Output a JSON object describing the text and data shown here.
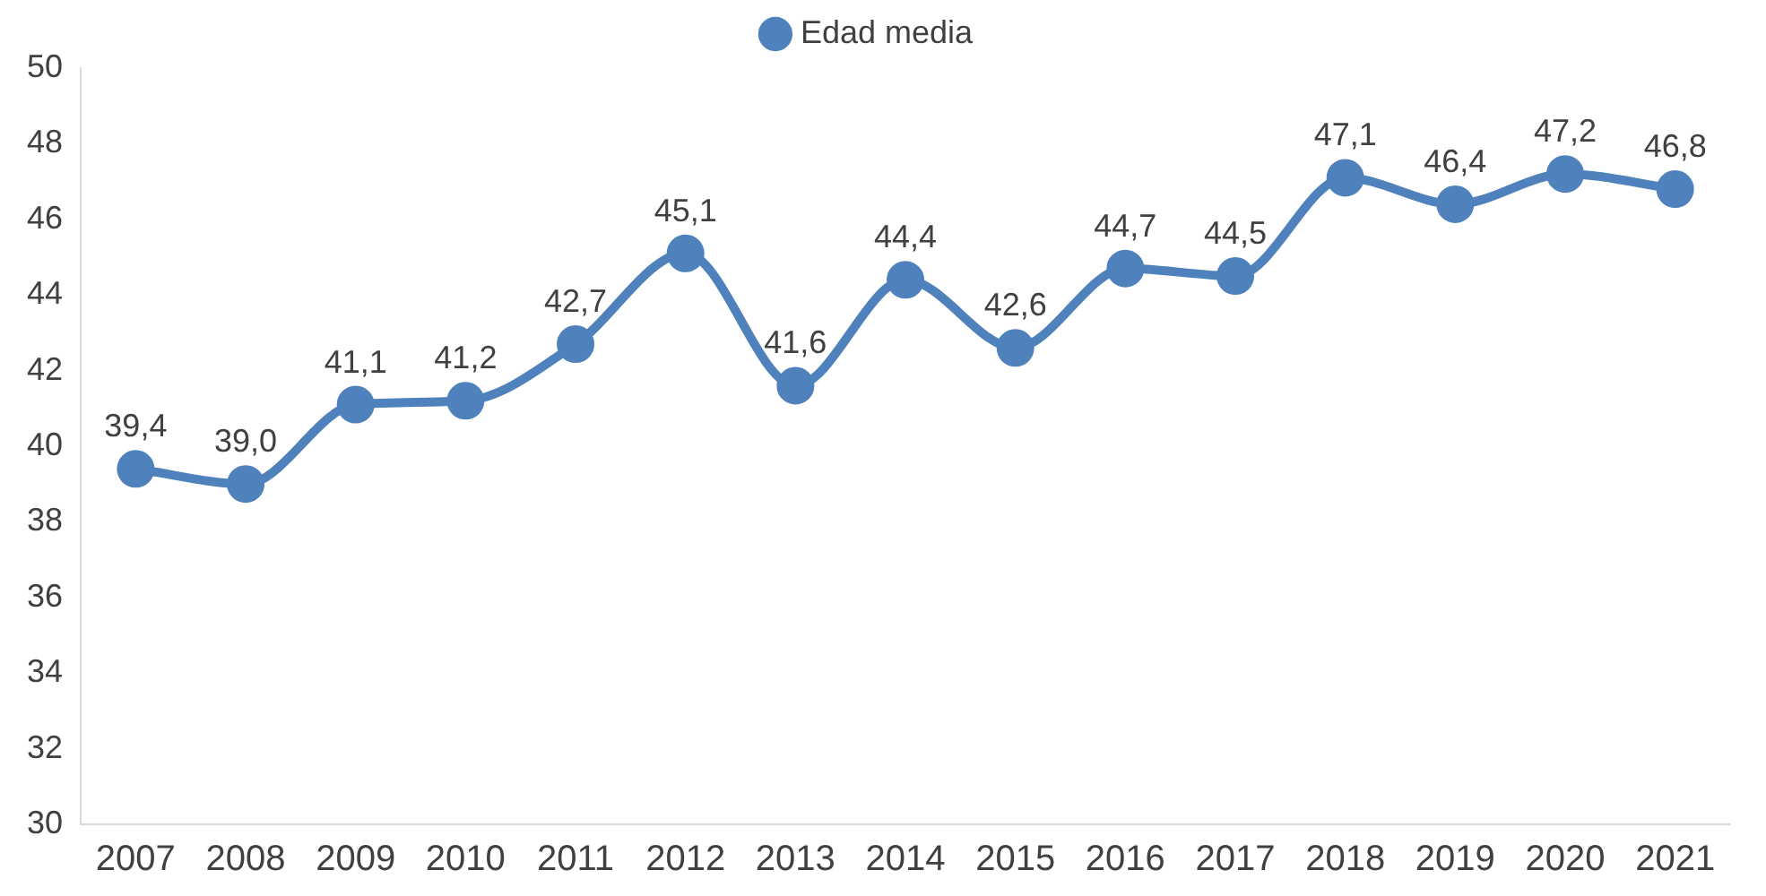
{
  "chart_data": {
    "type": "line",
    "categories": [
      "2007",
      "2008",
      "2009",
      "2010",
      "2011",
      "2012",
      "2013",
      "2014",
      "2015",
      "2016",
      "2017",
      "2018",
      "2019",
      "2020",
      "2021"
    ],
    "series": [
      {
        "name": "Edad media",
        "color": "#4f81bd",
        "values": [
          39.4,
          39.0,
          41.1,
          41.2,
          42.7,
          45.1,
          41.6,
          44.4,
          42.6,
          44.7,
          44.5,
          47.1,
          46.4,
          47.2,
          46.8
        ],
        "value_labels": [
          "39,4",
          "39,0",
          "41,1",
          "41,2",
          "42,7",
          "45,1",
          "41,6",
          "44,4",
          "42,6",
          "44,7",
          "44,5",
          "47,1",
          "46,4",
          "47,2",
          "46,8"
        ]
      }
    ],
    "ylim": [
      30,
      50
    ],
    "yticks": [
      30,
      32,
      34,
      36,
      38,
      40,
      42,
      44,
      46,
      48,
      50
    ],
    "grid": false,
    "legend": "top",
    "marker": "circle",
    "line_style": "solid"
  }
}
